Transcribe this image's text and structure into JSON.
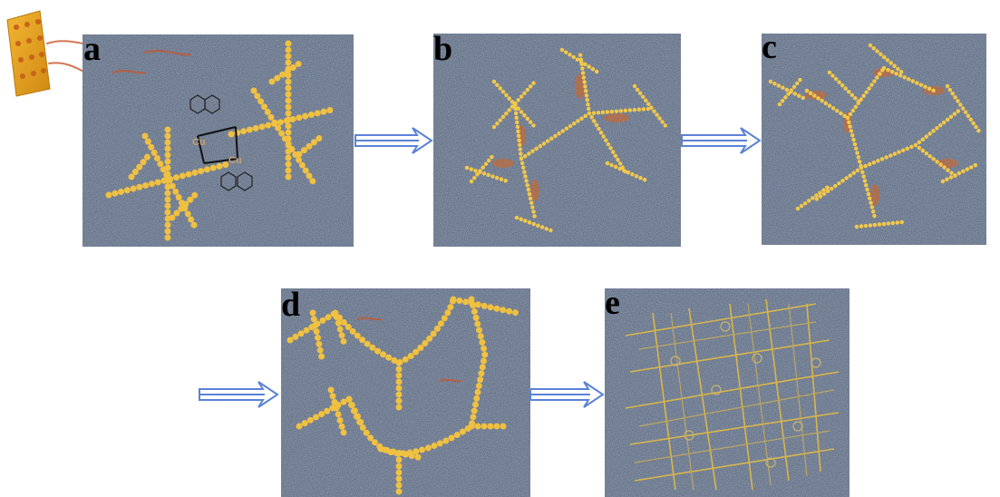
{
  "panels": [
    {
      "label": "a",
      "atoms": [
        "Cu",
        "Cu"
      ]
    },
    {
      "label": "b"
    },
    {
      "label": "c"
    },
    {
      "label": "d"
    },
    {
      "label": "e"
    }
  ]
}
